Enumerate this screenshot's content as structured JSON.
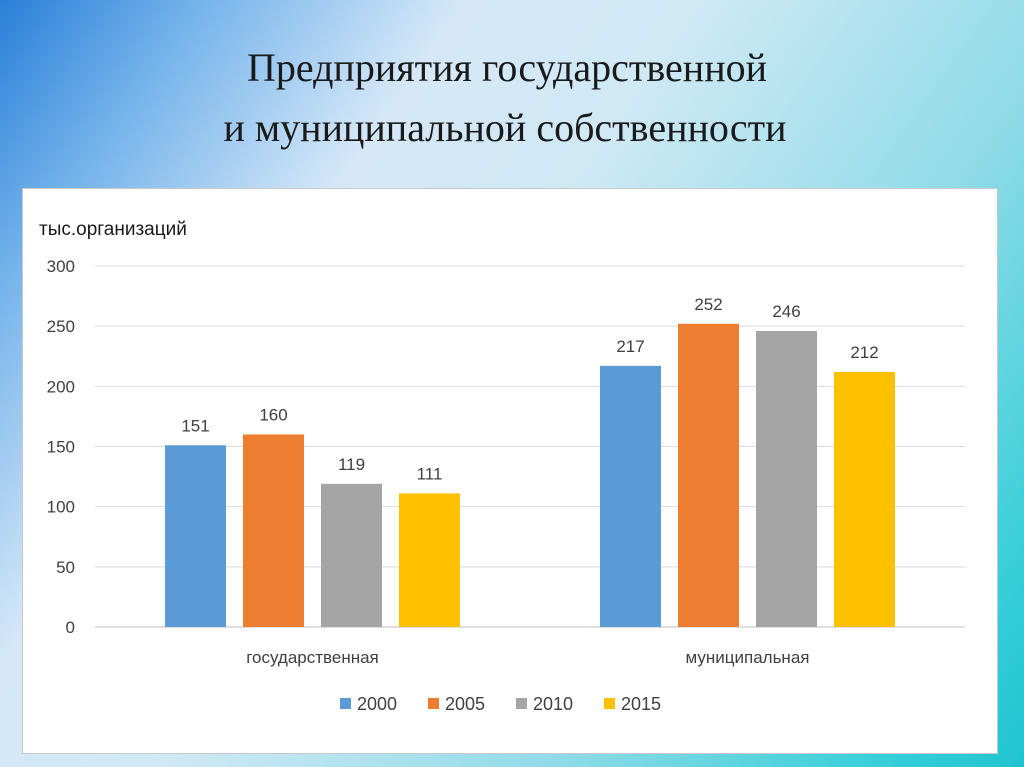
{
  "title": {
    "line1": "Предприятия государственной",
    "line2": "и муниципальной собственности"
  },
  "chart_data": {
    "type": "bar",
    "ylabel": "тыс.организаций",
    "ylim": [
      0,
      300
    ],
    "yticks": [
      0,
      50,
      100,
      150,
      200,
      250,
      300
    ],
    "grid": true,
    "legend_position": "bottom",
    "categories": [
      "государственная",
      "муниципальная"
    ],
    "series": [
      {
        "name": "2000",
        "color": "#5B9BD5",
        "values": [
          151,
          217
        ]
      },
      {
        "name": "2005",
        "color": "#ED7D31",
        "values": [
          160,
          252
        ]
      },
      {
        "name": "2010",
        "color": "#A5A5A5",
        "values": [
          119,
          246
        ]
      },
      {
        "name": "2015",
        "color": "#FFC000",
        "values": [
          111,
          212
        ]
      }
    ]
  }
}
